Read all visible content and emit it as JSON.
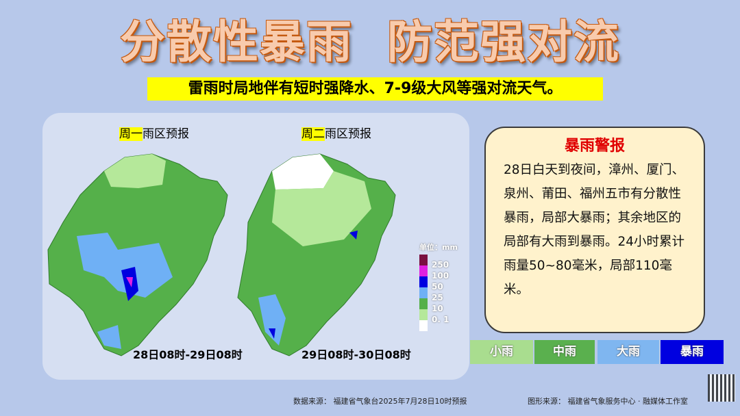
{
  "title": "分散性暴雨  防范强对流",
  "subtitle": "雷雨时局地伴有短时强降水、7-9级大风等强对流天气。",
  "maps": [
    {
      "title_highlight": "周一",
      "title_rest": "雨区预报",
      "date": "28日08时-29日08时"
    },
    {
      "title_highlight": "周二",
      "title_rest": "雨区预报",
      "date": "29日08时-30日08时"
    }
  ],
  "legend": {
    "unit": "单位：mm",
    "items": [
      {
        "label": "250",
        "color": "#7a1040"
      },
      {
        "label": "100",
        "color": "#e020e0"
      },
      {
        "label": "50",
        "color": "#0000e0"
      },
      {
        "label": "25",
        "color": "#6fb0f5"
      },
      {
        "label": "10",
        "color": "#55b04a"
      },
      {
        "label": "0. 1",
        "color": "#b5e89a"
      },
      {
        "label": "",
        "color": "#ffffff"
      }
    ]
  },
  "warning": {
    "title": "暴雨警报",
    "text": "28日白天到夜间，漳州、厦门、泉州、莆田、福州五市有分散性暴雨，局部大暴雨；其余地区的局部有大雨到暴雨。24小时累计雨量50~80毫米，局部110毫米。"
  },
  "categories": [
    {
      "label": "小雨",
      "color": "#a9dd8f"
    },
    {
      "label": "中雨",
      "color": "#5ab04e"
    },
    {
      "label": "大雨",
      "color": "#7fb6f0"
    },
    {
      "label": "暴雨",
      "color": "#0000e0"
    }
  ],
  "footer": {
    "data_source": "数据来源：  福建省气象台2025年7月28日10时预报",
    "graphic_source": "图形来源：  福建省气象服务中心 · 融媒体工作室"
  }
}
